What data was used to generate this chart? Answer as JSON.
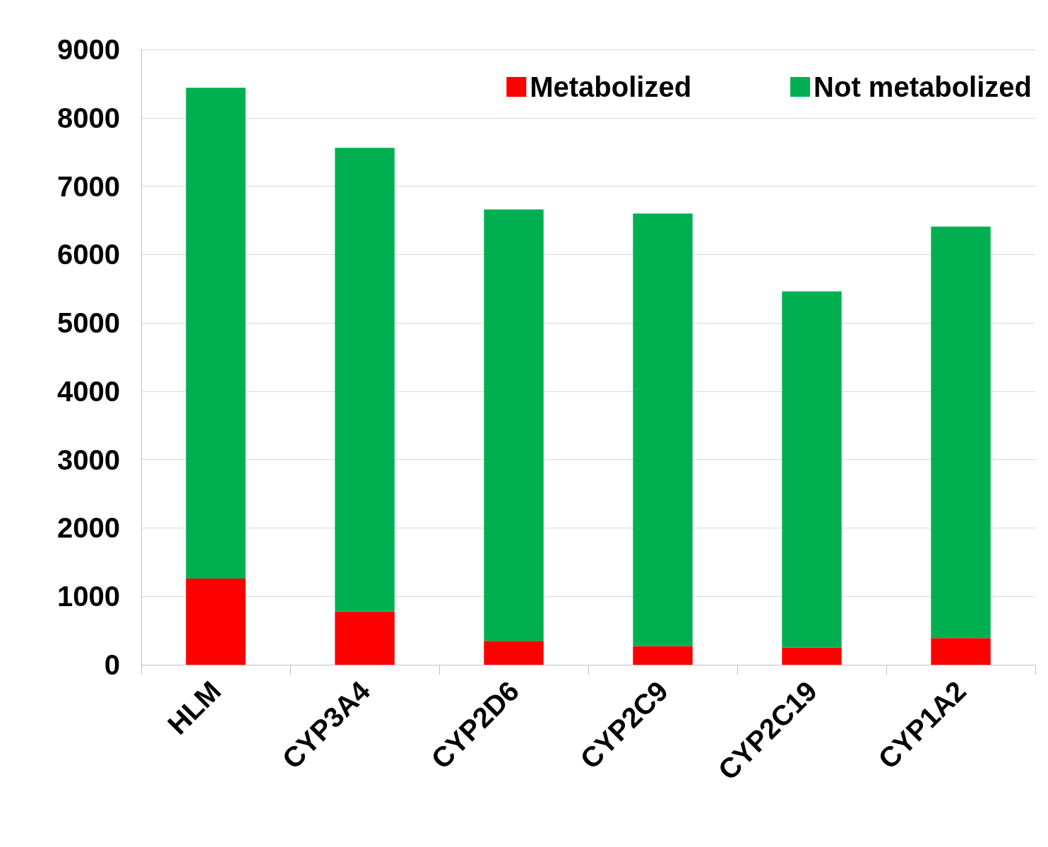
{
  "chart_data": {
    "type": "bar",
    "stacked": true,
    "categories": [
      "HLM",
      "CYP3A4",
      "CYP2D6",
      "CYP2C9",
      "CYP2C19",
      "CYP1A2"
    ],
    "series": [
      {
        "name": "Metabolized",
        "color": "#ff0000",
        "values": [
          1260,
          780,
          350,
          270,
          250,
          390
        ]
      },
      {
        "name": "Not metabolized",
        "color": "#00b050",
        "values": [
          7180,
          6780,
          6310,
          6330,
          5210,
          6020
        ]
      }
    ],
    "ylim": [
      0,
      9000
    ],
    "yticks": [
      0,
      1000,
      2000,
      3000,
      4000,
      5000,
      6000,
      7000,
      8000,
      9000
    ],
    "grid": "y",
    "legend": "top right"
  }
}
